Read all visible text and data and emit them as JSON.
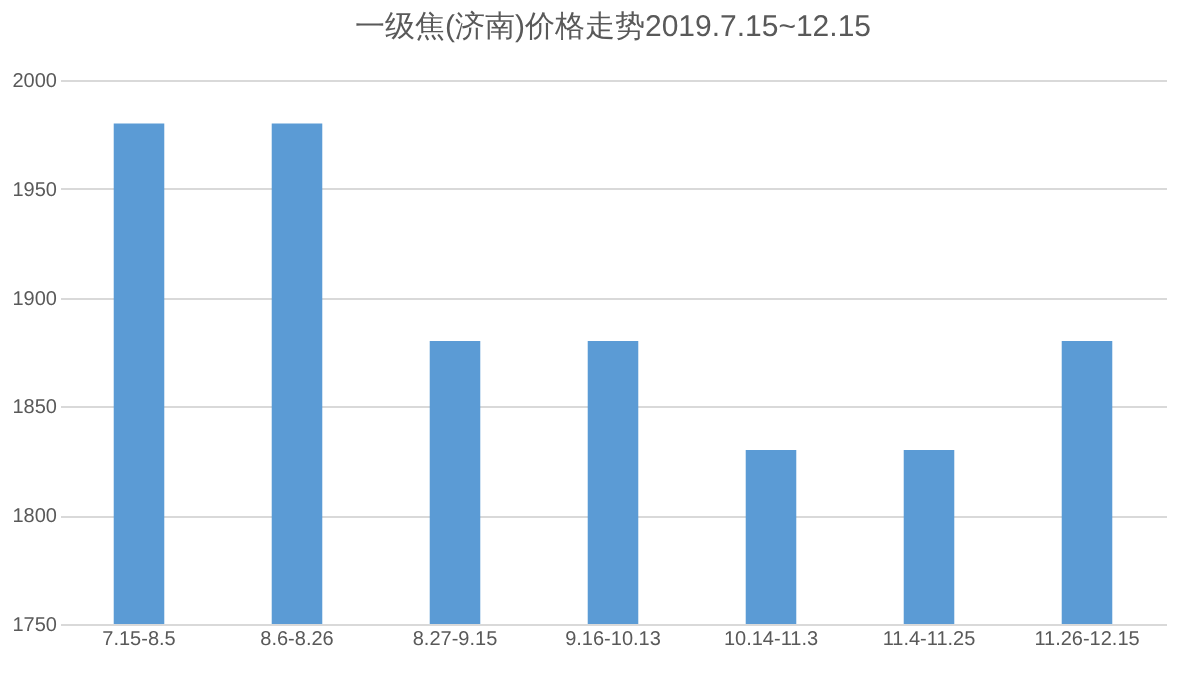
{
  "chart_data": {
    "type": "bar",
    "title": "一级焦(济南)价格走势2019.7.15~12.15",
    "categories": [
      "7.15-8.5",
      "8.6-8.26",
      "8.27-9.15",
      "9.16-10.13",
      "10.14-11.3",
      "11.4-11.25",
      "11.26-12.15"
    ],
    "values": [
      1980,
      1980,
      1880,
      1880,
      1830,
      1830,
      1880
    ],
    "color": "#5b9bd5",
    "ylim": [
      1750,
      2000
    ],
    "yticks": [
      1750,
      1800,
      1850,
      1900,
      1950,
      2000
    ],
    "grid": "y"
  }
}
